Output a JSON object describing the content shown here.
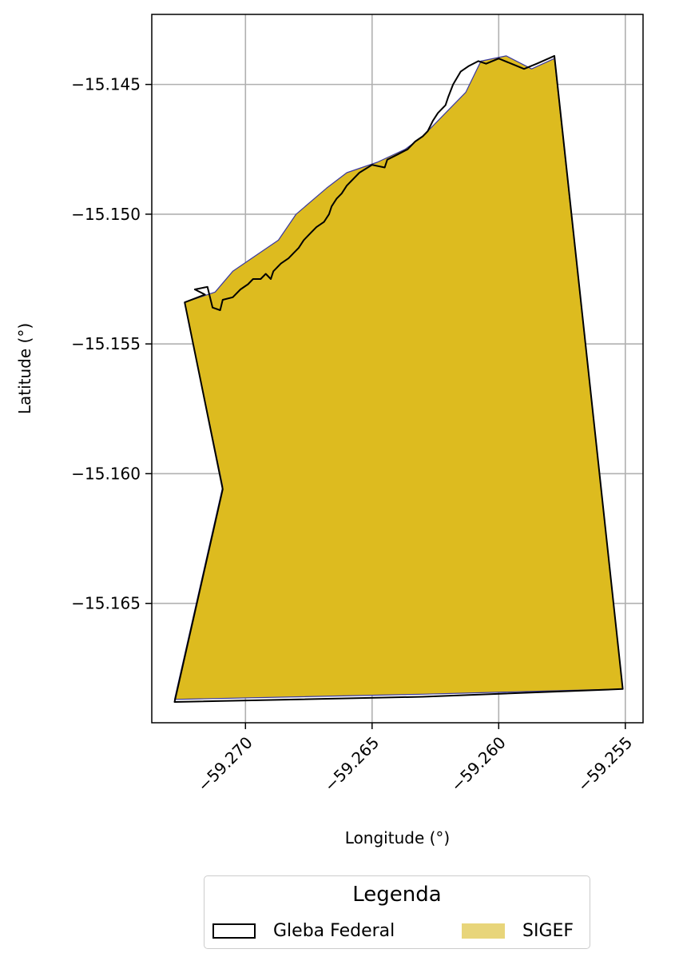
{
  "chart_data": {
    "type": "map",
    "xlabel": "Longitude (°)",
    "ylabel": "Latitude (°)",
    "xlim": [
      -59.2737,
      -59.2543
    ],
    "ylim": [
      -15.1696,
      -15.1423
    ],
    "xticks": [
      -59.27,
      -59.265,
      -59.26,
      -59.255
    ],
    "xtick_labels": [
      "−59.270",
      "−59.265",
      "−59.260",
      "−59.255"
    ],
    "yticks": [
      -15.145,
      -15.15,
      -15.155,
      -15.16,
      -15.165
    ],
    "ytick_labels": [
      "−15.145",
      "−15.150",
      "−15.155",
      "−15.160",
      "−15.165"
    ],
    "grid": true,
    "legend_placement": "bottom-center",
    "layers": [
      {
        "name": "SIGEF",
        "fill": "#ddbb1f",
        "legend_fill": "#e8d57a",
        "outline": "#3a3aa0",
        "polygon": [
          [
            -59.2724,
            -15.1534
          ],
          [
            -59.2709,
            -15.1605
          ],
          [
            -59.2728,
            -15.1687
          ],
          [
            -59.263,
            -15.1685
          ],
          [
            -59.2551,
            -15.1683
          ],
          [
            -59.2578,
            -15.144
          ],
          [
            -59.2587,
            -15.1444
          ],
          [
            -59.2597,
            -15.1439
          ],
          [
            -59.2607,
            -15.1441
          ],
          [
            -59.2613,
            -15.1453
          ],
          [
            -59.262,
            -15.146
          ],
          [
            -59.263,
            -15.147
          ],
          [
            -59.2637,
            -15.1475
          ],
          [
            -59.2648,
            -15.148
          ],
          [
            -59.266,
            -15.1484
          ],
          [
            -59.2668,
            -15.149
          ],
          [
            -59.268,
            -15.15
          ],
          [
            -59.2687,
            -15.151
          ],
          [
            -59.2696,
            -15.1516
          ],
          [
            -59.2705,
            -15.1522
          ],
          [
            -59.2712,
            -15.153
          ],
          [
            -59.2724,
            -15.1534
          ]
        ]
      },
      {
        "name": "Gleba Federal",
        "fill": "none",
        "outline": "#000000",
        "polygon": [
          [
            -59.2724,
            -15.1534
          ],
          [
            -59.2716,
            -15.1531
          ],
          [
            -59.272,
            -15.1529
          ],
          [
            -59.2715,
            -15.1528
          ],
          [
            -59.2714,
            -15.1532
          ],
          [
            -59.2713,
            -15.1536
          ],
          [
            -59.271,
            -15.1537
          ],
          [
            -59.2709,
            -15.1533
          ],
          [
            -59.2705,
            -15.1532
          ],
          [
            -59.2702,
            -15.1529
          ],
          [
            -59.2699,
            -15.1527
          ],
          [
            -59.2697,
            -15.1525
          ],
          [
            -59.2694,
            -15.1525
          ],
          [
            -59.2692,
            -15.1523
          ],
          [
            -59.269,
            -15.1525
          ],
          [
            -59.2689,
            -15.1522
          ],
          [
            -59.2686,
            -15.1519
          ],
          [
            -59.2683,
            -15.1517
          ],
          [
            -59.2681,
            -15.1515
          ],
          [
            -59.2679,
            -15.1513
          ],
          [
            -59.2677,
            -15.151
          ],
          [
            -59.2674,
            -15.1507
          ],
          [
            -59.2672,
            -15.1505
          ],
          [
            -59.2669,
            -15.1503
          ],
          [
            -59.2667,
            -15.15
          ],
          [
            -59.2666,
            -15.1497
          ],
          [
            -59.2664,
            -15.1494
          ],
          [
            -59.2662,
            -15.1492
          ],
          [
            -59.266,
            -15.1489
          ],
          [
            -59.2655,
            -15.1484
          ],
          [
            -59.265,
            -15.1481
          ],
          [
            -59.2645,
            -15.1482
          ],
          [
            -59.2644,
            -15.1479
          ],
          [
            -59.264,
            -15.1477
          ],
          [
            -59.2636,
            -15.1475
          ],
          [
            -59.2633,
            -15.1472
          ],
          [
            -59.263,
            -15.147
          ],
          [
            -59.2628,
            -15.1468
          ],
          [
            -59.2626,
            -15.1464
          ],
          [
            -59.2624,
            -15.1461
          ],
          [
            -59.2621,
            -15.1458
          ],
          [
            -59.262,
            -15.1455
          ],
          [
            -59.2618,
            -15.145
          ],
          [
            -59.2615,
            -15.1445
          ],
          [
            -59.2612,
            -15.1443
          ],
          [
            -59.2608,
            -15.1441
          ],
          [
            -59.2605,
            -15.1442
          ],
          [
            -59.26,
            -15.144
          ],
          [
            -59.2595,
            -15.1442
          ],
          [
            -59.259,
            -15.1444
          ],
          [
            -59.2585,
            -15.1442
          ],
          [
            -59.2578,
            -15.1439
          ],
          [
            -59.2551,
            -15.1683
          ],
          [
            -59.263,
            -15.1686
          ],
          [
            -59.2728,
            -15.1688
          ],
          [
            -59.2709,
            -15.1606
          ],
          [
            -59.2724,
            -15.1534
          ]
        ]
      }
    ]
  },
  "legend": {
    "title": "Legenda",
    "items": [
      {
        "label": "Gleba Federal",
        "fill": "#ffffff",
        "stroke": "#000000"
      },
      {
        "label": "SIGEF",
        "fill": "#e8d57a",
        "stroke": "none"
      }
    ]
  }
}
